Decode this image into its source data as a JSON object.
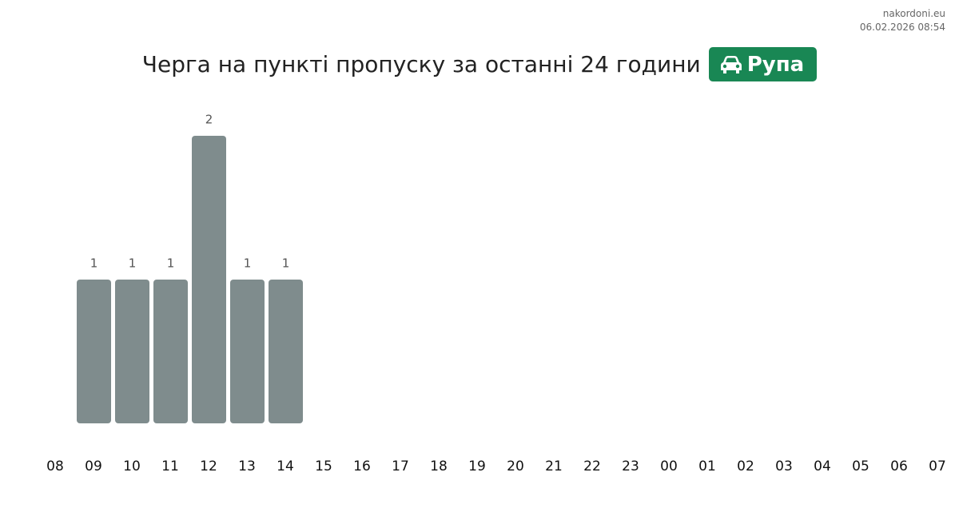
{
  "header": {
    "site": "nakordoni.eu",
    "timestamp": "06.02.2026 08:54"
  },
  "chart_data": {
    "type": "bar",
    "title": "Черга на пункті пропуску за останні 24 години",
    "badge": "Рупа",
    "categories": [
      "08",
      "09",
      "10",
      "11",
      "12",
      "13",
      "14",
      "15",
      "16",
      "17",
      "18",
      "19",
      "20",
      "21",
      "22",
      "23",
      "00",
      "01",
      "02",
      "03",
      "04",
      "05",
      "06",
      "07"
    ],
    "values": [
      0,
      1,
      1,
      1,
      2,
      1,
      1,
      0,
      0,
      0,
      0,
      0,
      0,
      0,
      0,
      0,
      0,
      0,
      0,
      0,
      0,
      0,
      0,
      0
    ],
    "color": "#7f8c8d"
  }
}
